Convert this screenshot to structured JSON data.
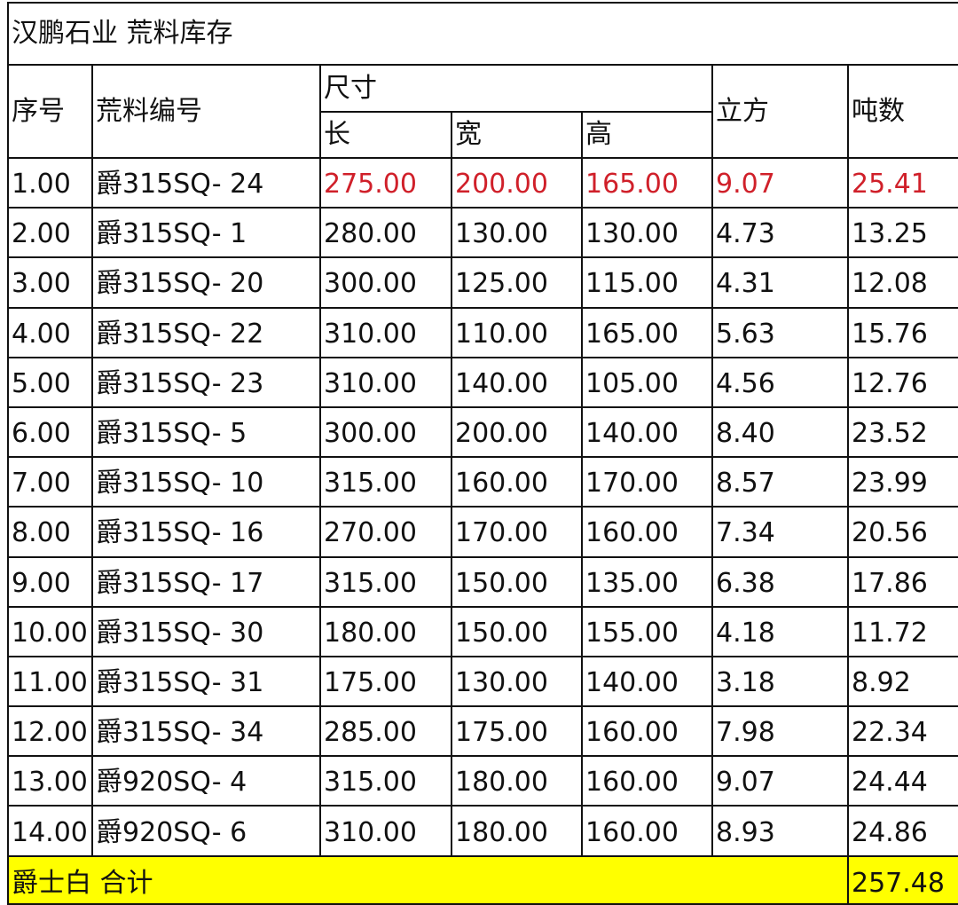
{
  "sheet": {
    "title": "汉鹏石业 荒料库存",
    "headers": {
      "index": "序号",
      "block_id": "荒料编号",
      "size": "尺寸",
      "length": "长",
      "width": "宽",
      "height": "高",
      "volume": "立方",
      "tons": "吨数"
    },
    "rows": [
      {
        "index": "1.00",
        "block_id": "爵315SQ- 24",
        "length": "275.00",
        "width": "200.00",
        "height": "165.00",
        "volume": "9.07",
        "tons": "25.41",
        "highlight": true
      },
      {
        "index": "2.00",
        "block_id": "爵315SQ- 1",
        "length": "280.00",
        "width": "130.00",
        "height": "130.00",
        "volume": "4.73",
        "tons": "13.25"
      },
      {
        "index": "3.00",
        "block_id": "爵315SQ- 20",
        "length": "300.00",
        "width": "125.00",
        "height": "115.00",
        "volume": "4.31",
        "tons": "12.08"
      },
      {
        "index": "4.00",
        "block_id": "爵315SQ- 22",
        "length": "310.00",
        "width": "110.00",
        "height": "165.00",
        "volume": "5.63",
        "tons": "15.76"
      },
      {
        "index": "5.00",
        "block_id": "爵315SQ- 23",
        "length": "310.00",
        "width": "140.00",
        "height": "105.00",
        "volume": "4.56",
        "tons": "12.76"
      },
      {
        "index": "6.00",
        "block_id": "爵315SQ- 5",
        "length": "300.00",
        "width": "200.00",
        "height": "140.00",
        "volume": "8.40",
        "tons": "23.52"
      },
      {
        "index": "7.00",
        "block_id": "爵315SQ- 10",
        "length": "315.00",
        "width": "160.00",
        "height": "170.00",
        "volume": "8.57",
        "tons": "23.99"
      },
      {
        "index": "8.00",
        "block_id": "爵315SQ- 16",
        "length": "270.00",
        "width": "170.00",
        "height": "160.00",
        "volume": "7.34",
        "tons": "20.56"
      },
      {
        "index": "9.00",
        "block_id": "爵315SQ- 17",
        "length": "315.00",
        "width": "150.00",
        "height": "135.00",
        "volume": "6.38",
        "tons": "17.86"
      },
      {
        "index": "10.00",
        "block_id": "爵315SQ- 30",
        "length": "180.00",
        "width": "150.00",
        "height": "155.00",
        "volume": "4.18",
        "tons": "11.72"
      },
      {
        "index": "11.00",
        "block_id": "爵315SQ- 31",
        "length": "175.00",
        "width": "130.00",
        "height": "140.00",
        "volume": "3.18",
        "tons": "8.92"
      },
      {
        "index": "12.00",
        "block_id": "爵315SQ- 34",
        "length": "285.00",
        "width": "175.00",
        "height": "160.00",
        "volume": "7.98",
        "tons": "22.34"
      },
      {
        "index": "13.00",
        "block_id": "爵920SQ- 4",
        "length": "315.00",
        "width": "180.00",
        "height": "160.00",
        "volume": "9.07",
        "tons": "24.44"
      },
      {
        "index": "14.00",
        "block_id": "爵920SQ- 6",
        "length": "310.00",
        "width": "180.00",
        "height": "160.00",
        "volume": "8.93",
        "tons": "24.86"
      }
    ],
    "total": {
      "label": "爵士白 合计",
      "tons": "257.48"
    },
    "colors": {
      "highlight_text": "#d0202a",
      "total_fill": "#ffff00"
    }
  }
}
